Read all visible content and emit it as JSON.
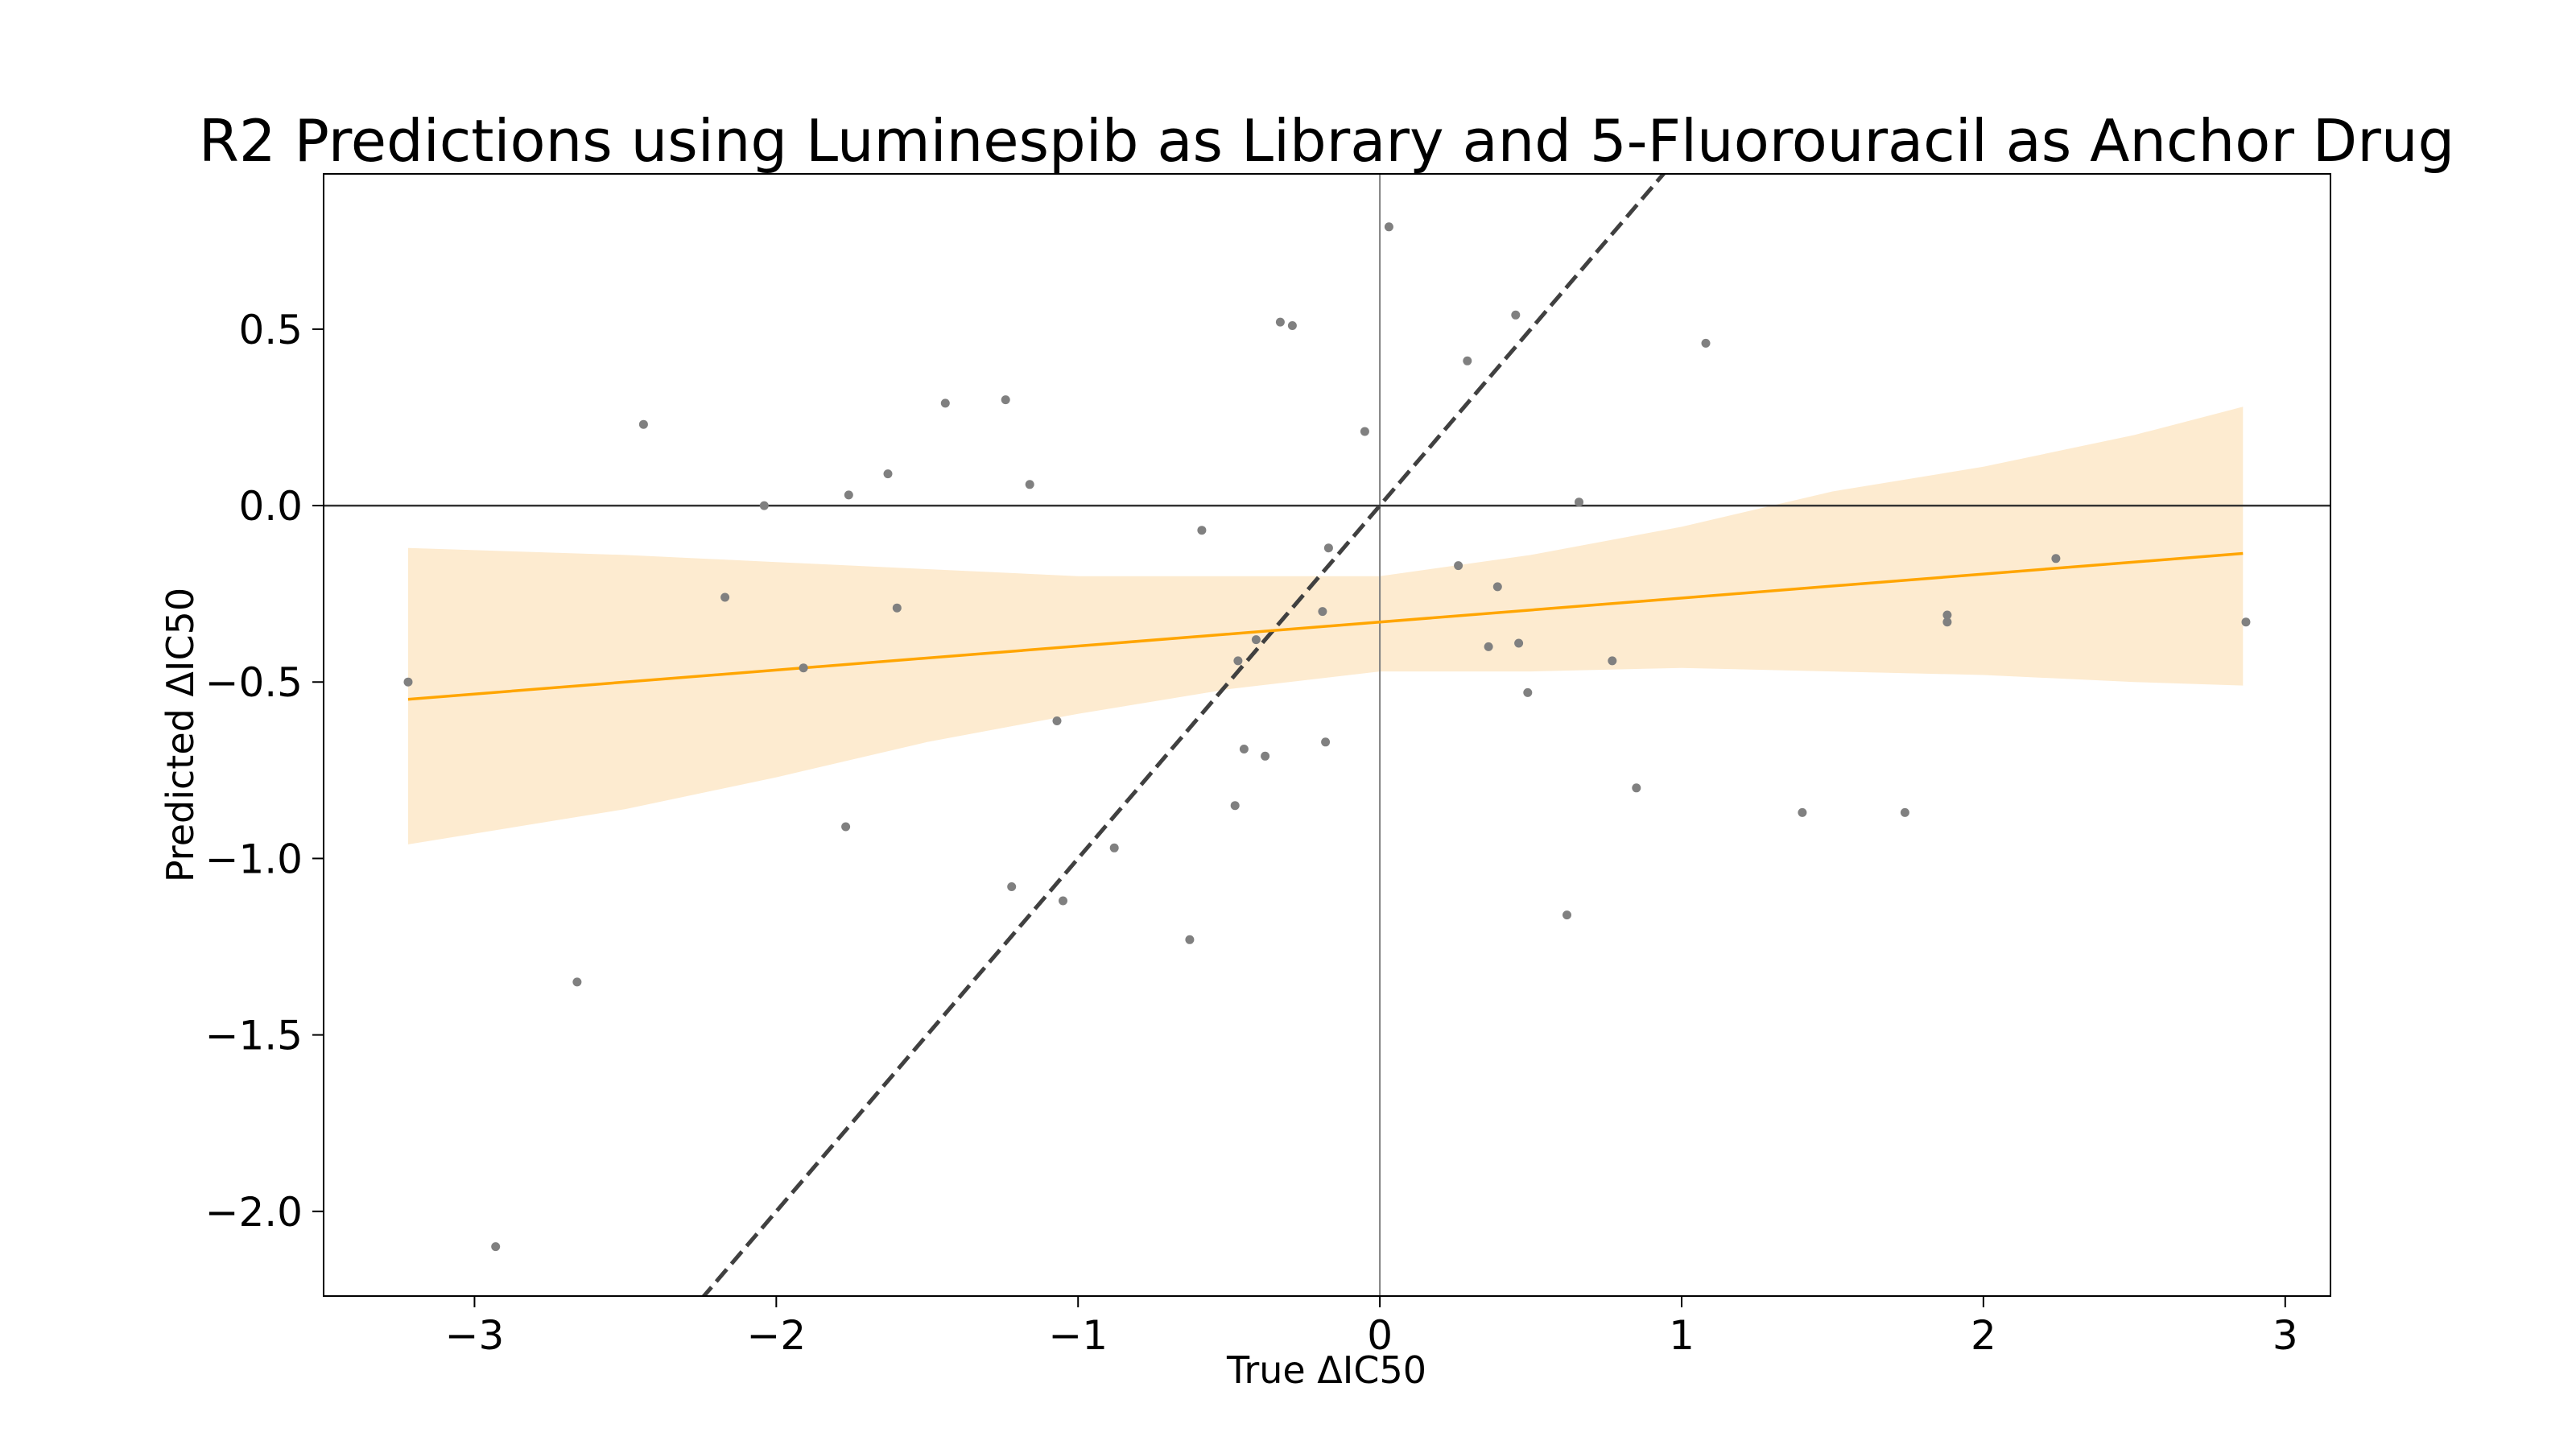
{
  "chart_data": {
    "type": "scatter",
    "title": "R2 Predictions using Luminespib as Library and 5-Fluorouracil as Anchor Drug",
    "xlabel": "True ΔIC50",
    "ylabel": "Predicted ΔIC50",
    "xlim": [
      -3.5,
      3.15
    ],
    "ylim": [
      -2.24,
      0.94
    ],
    "xticks": [
      -3,
      -2,
      -1,
      0,
      1,
      2,
      3
    ],
    "xtick_labels": [
      "−3",
      "−2",
      "−1",
      "0",
      "1",
      "2",
      "3"
    ],
    "yticks": [
      0.5,
      0.0,
      -0.5,
      -1.0,
      -1.5,
      -2.0
    ],
    "ytick_labels": [
      "0.5",
      "0.0",
      "−0.5",
      "−1.0",
      "−1.5",
      "−2.0"
    ],
    "grid": false,
    "reference_lines": {
      "identity": "y = x (dashed)",
      "x_zero": 0,
      "y_zero": 0
    },
    "regression": {
      "x_range": [
        -3.22,
        2.86
      ],
      "slope": 0.068,
      "intercept": -0.33,
      "ci_x": [
        -3.22,
        -2.5,
        -2.0,
        -1.5,
        -1.0,
        -0.5,
        0.0,
        0.5,
        1.0,
        1.5,
        2.0,
        2.5,
        2.86
      ],
      "ci_upper": [
        -0.12,
        -0.14,
        -0.16,
        -0.18,
        -0.2,
        -0.2,
        -0.2,
        -0.14,
        -0.06,
        0.04,
        0.11,
        0.2,
        0.28
      ],
      "ci_lower": [
        -0.96,
        -0.86,
        -0.77,
        -0.67,
        -0.59,
        -0.52,
        -0.47,
        -0.47,
        -0.46,
        -0.47,
        -0.48,
        -0.5,
        -0.51
      ]
    },
    "series": [
      {
        "x": [
          -3.22,
          -2.93,
          -2.66,
          -2.44,
          -2.17,
          -2.04,
          -1.91,
          -1.77,
          -1.76,
          -1.63,
          -1.6,
          -1.44,
          -1.24,
          -1.22,
          -1.16,
          -1.07,
          -1.05,
          -0.88,
          -0.63,
          -0.59,
          -0.48,
          -0.47,
          -0.45,
          -0.41,
          -0.38,
          -0.33,
          -0.29,
          -0.19,
          -0.18,
          -0.17,
          -0.05,
          0.03,
          0.26,
          0.29,
          0.36,
          0.39,
          0.45,
          0.46,
          0.49,
          0.62,
          0.66,
          0.77,
          0.85,
          1.08,
          1.4,
          1.74,
          1.88,
          1.88,
          2.24,
          2.87
        ],
        "y": [
          -0.5,
          -2.1,
          -1.35,
          0.23,
          -0.26,
          0.0,
          -0.46,
          -0.91,
          0.03,
          0.09,
          -0.29,
          0.29,
          0.3,
          -1.08,
          0.06,
          -0.61,
          -1.12,
          -0.97,
          -1.23,
          -0.07,
          -0.85,
          -0.44,
          -0.69,
          -0.38,
          -0.71,
          0.52,
          0.51,
          -0.3,
          -0.67,
          -0.12,
          0.21,
          0.79,
          -0.17,
          0.41,
          -0.4,
          -0.23,
          0.54,
          -0.39,
          -0.53,
          -1.16,
          0.01,
          -0.44,
          -0.8,
          0.46,
          -0.87,
          -0.87,
          -0.31,
          -0.33,
          -0.15,
          -0.33
        ]
      }
    ],
    "colors": {
      "points": "#808080",
      "regression_line": "#ffa500",
      "confidence_band": "#fdebd0",
      "identity_line": "#404040",
      "zero_lines": "#000000",
      "axes": "#000000"
    }
  }
}
